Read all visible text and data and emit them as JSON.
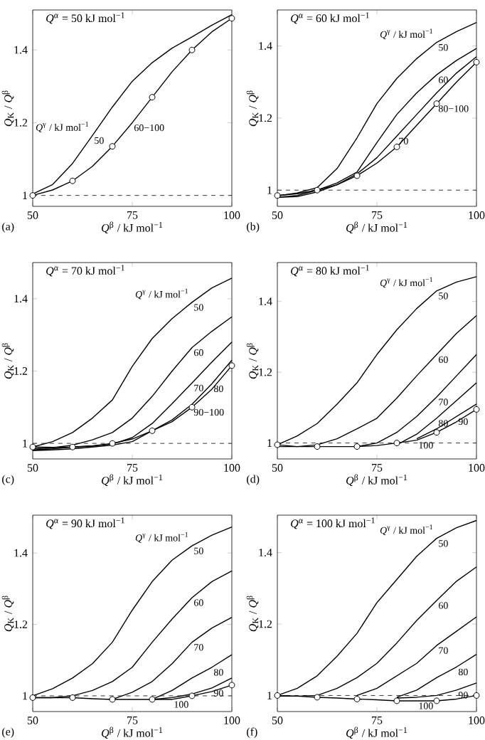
{
  "chart_data": [
    {
      "type": "line",
      "title": "*Q*$^{α}$ = 50 kJ mol$^{−1}$",
      "xlabel": "*Q*$^{β}$ / kJ mol$^{−1}$",
      "ylabel": "*Q*$_{K}$ / *Q*$^{β}$",
      "legend_title": "*Q*$^{γ}$ / kJ mol$^{−1}$",
      "xlim": [
        50,
        100
      ],
      "ylim": [
        0.97,
        1.51
      ],
      "xticks": [
        50,
        75,
        100
      ],
      "yticks": [
        1,
        1.2,
        1.4
      ],
      "x": [
        50,
        55,
        60,
        65,
        70,
        75,
        80,
        85,
        90,
        95,
        100
      ],
      "series": [
        {
          "color": "#000000",
          "values": [
            1.004,
            1.03,
            1.088,
            1.165,
            1.243,
            1.314,
            1.365,
            1.405,
            1.436,
            1.468,
            1.497
          ]
        },
        {
          "color": "#000000",
          "values": [
            1.0,
            1.015,
            1.04,
            1.08,
            1.135,
            1.2,
            1.27,
            1.34,
            1.4,
            1.45,
            1.487
          ]
        },
        {
          "type": "scatter",
          "marker": "circle",
          "color": "#000000",
          "x": [
            50,
            60,
            70,
            80,
            90,
            100
          ],
          "values": [
            1.0,
            1.04,
            1.135,
            1.27,
            1.4,
            1.487
          ]
        }
      ],
      "ref_lines": [
        {
          "axis": "y",
          "value": 1,
          "color": "#000000",
          "line_style": "dashed"
        }
      ],
      "annotations": [
        {
          "text": "50",
          "x": 65,
          "y": 1.165
        },
        {
          "text": "60−100",
          "x": 75,
          "y": 1.2
        },
        "(a)"
      ]
    },
    {
      "type": "line",
      "title": "*Q*$^{α}$ = 60 kJ mol$^{−1}$",
      "xlabel": "*Q*$^{β}$ / kJ mol$^{−1}$",
      "ylabel": "*Q*$_{K}$ / *Q*$^{β}$",
      "legend_title": "*Q*$^{γ}$ / kJ mol$^{−1}$",
      "xlim": [
        50,
        100
      ],
      "ylim": [
        0.955,
        1.5
      ],
      "xticks": [
        50,
        75,
        100
      ],
      "yticks": [
        1,
        1.2,
        1.4
      ],
      "x": [
        50,
        55,
        60,
        65,
        70,
        75,
        80,
        85,
        90,
        95,
        100
      ],
      "series": [
        {
          "color": "#000000",
          "values": [
            0.984,
            0.992,
            1.007,
            1.06,
            1.145,
            1.24,
            1.31,
            1.365,
            1.41,
            1.44,
            1.465
          ]
        },
        {
          "color": "#000000",
          "values": [
            0.98,
            0.985,
            1.0,
            1.02,
            1.05,
            1.132,
            1.21,
            1.27,
            1.32,
            1.36,
            1.393
          ]
        },
        {
          "color": "#000000",
          "values": [
            0.98,
            0.982,
            0.995,
            1.015,
            1.045,
            1.09,
            1.15,
            1.21,
            1.27,
            1.325,
            1.37
          ]
        },
        {
          "color": "#000000",
          "values": [
            0.985,
            0.99,
            1.0,
            1.015,
            1.04,
            1.075,
            1.12,
            1.18,
            1.24,
            1.3,
            1.355
          ]
        },
        {
          "type": "scatter",
          "marker": "circle",
          "color": "#000000",
          "x": [
            50,
            60,
            70,
            80,
            90,
            100
          ],
          "values": [
            0.985,
            1.0,
            1.04,
            1.12,
            1.24,
            1.355
          ]
        }
      ],
      "ref_lines": [
        {
          "axis": "y",
          "value": 1,
          "color": "#000000",
          "line_style": "dashed"
        }
      ],
      "annotations": [
        {
          "text": "50",
          "x": 90,
          "y": 1.41
        },
        {
          "text": "60",
          "x": 90,
          "y": 1.32
        },
        {
          "text": "70",
          "x": 80,
          "y": 1.15
        },
        {
          "text": "80−100",
          "x": 90,
          "y": 1.24
        },
        "(b)"
      ]
    },
    {
      "type": "line",
      "title": "*Q*$^{α}$ = 70 kJ mol$^{−1}$",
      "xlabel": "*Q*$^{β}$ / kJ mol$^{−1}$",
      "ylabel": "*Q*$_{K}$ / *Q*$^{β}$",
      "legend_title": "*Q*$^{γ}$ / kJ mol$^{−1}$",
      "xlim": [
        50,
        100
      ],
      "ylim": [
        0.957,
        1.5
      ],
      "xticks": [
        50,
        75,
        100
      ],
      "yticks": [
        1,
        1.2,
        1.4
      ],
      "x": [
        50,
        55,
        60,
        65,
        70,
        75,
        80,
        85,
        90,
        95,
        100
      ],
      "series": [
        {
          "color": "#000000",
          "values": [
            0.99,
            1.005,
            1.03,
            1.07,
            1.12,
            1.213,
            1.29,
            1.345,
            1.39,
            1.43,
            1.457
          ]
        },
        {
          "color": "#000000",
          "values": [
            0.985,
            0.988,
            0.995,
            1.01,
            1.03,
            1.07,
            1.13,
            1.2,
            1.265,
            1.31,
            1.35
          ]
        },
        {
          "color": "#000000",
          "values": [
            0.982,
            0.985,
            0.99,
            0.993,
            0.998,
            1.016,
            1.055,
            1.11,
            1.167,
            1.225,
            1.28
          ]
        },
        {
          "color": "#000000",
          "values": [
            0.98,
            0.982,
            0.985,
            0.99,
            0.995,
            1.005,
            1.035,
            1.065,
            1.108,
            1.165,
            1.23
          ]
        },
        {
          "color": "#000000",
          "values": [
            0.99,
            0.989,
            0.99,
            0.993,
            1.0,
            1.012,
            1.035,
            1.06,
            1.1,
            1.15,
            1.215
          ]
        },
        {
          "type": "scatter",
          "marker": "circle",
          "color": "#000000",
          "x": [
            50,
            60,
            70,
            80,
            90,
            100
          ],
          "values": [
            0.99,
            0.99,
            1.0,
            1.035,
            1.1,
            1.215
          ]
        }
      ],
      "ref_lines": [
        {
          "axis": "y",
          "value": 1,
          "color": "#000000",
          "line_style": "dashed"
        }
      ],
      "annotations": [
        {
          "text": "50",
          "x": 90,
          "y": 1.39
        },
        {
          "text": "60",
          "x": 90,
          "y": 1.265
        },
        {
          "text": "70",
          "x": 90,
          "y": 1.167
        },
        {
          "text": "80",
          "x": 95,
          "y": 1.165
        },
        {
          "text": "90−100",
          "x": 90,
          "y": 1.1
        },
        "(c)"
      ]
    },
    {
      "type": "line",
      "title": "*Q*$^{α}$ = 80 kJ mol$^{−1}$",
      "xlabel": "*Q*$^{β}$ / kJ mol$^{−1}$",
      "ylabel": "*Q*$_{K}$ / *Q*$^{β}$",
      "legend_title": "*Q*$^{γ}$ / kJ mol$^{−1}$",
      "xlim": [
        50,
        100
      ],
      "ylim": [
        0.955,
        1.51
      ],
      "xticks": [
        50,
        75,
        100
      ],
      "yticks": [
        1,
        1.2,
        1.4
      ],
      "x": [
        50,
        55,
        60,
        65,
        70,
        75,
        80,
        85,
        90,
        95,
        100
      ],
      "series": [
        {
          "color": "#000000",
          "values": [
            0.995,
            1.02,
            1.055,
            1.11,
            1.17,
            1.25,
            1.32,
            1.38,
            1.43,
            1.455,
            1.47
          ]
        },
        {
          "color": "#000000",
          "values": [
            0.99,
            0.99,
            0.995,
            1.012,
            1.04,
            1.07,
            1.127,
            1.19,
            1.25,
            1.31,
            1.36
          ]
        },
        {
          "color": "#000000",
          "values": [
            null,
            null,
            null,
            null,
            0.99,
            1.0,
            1.03,
            1.075,
            1.13,
            1.19,
            1.25
          ]
        },
        {
          "color": "#000000",
          "values": [
            null,
            null,
            null,
            null,
            null,
            null,
            0.995,
            1.025,
            1.07,
            1.12,
            1.17
          ]
        },
        {
          "color": "#000000",
          "values": [
            null,
            null,
            null,
            null,
            null,
            null,
            null,
            1.012,
            1.04,
            1.075,
            1.11
          ]
        },
        {
          "color": "#000000",
          "values": [
            0.995,
            0.99,
            0.99,
            0.99,
            0.99,
            0.993,
            1.0,
            1.008,
            1.03,
            1.06,
            1.095
          ]
        },
        {
          "type": "scatter",
          "marker": "circle",
          "color": "#000000",
          "x": [
            50,
            60,
            70,
            80,
            90,
            100
          ],
          "values": [
            0.995,
            0.99,
            0.99,
            1.0,
            1.03,
            1.095
          ]
        }
      ],
      "ref_lines": [
        {
          "axis": "y",
          "value": 1,
          "color": "#000000",
          "line_style": "dashed"
        }
      ],
      "annotations": [
        {
          "text": "50",
          "x": 90,
          "y": 1.43
        },
        {
          "text": "60",
          "x": 90,
          "y": 1.25
        },
        {
          "text": "70",
          "x": 90,
          "y": 1.13
        },
        {
          "text": "80",
          "x": 90,
          "y": 1.07
        },
        {
          "text": "100",
          "x": 85,
          "y": 1.008
        },
        {
          "text": "90",
          "x": 95,
          "y": 1.075
        },
        "(d)"
      ]
    },
    {
      "type": "line",
      "title": "*Q*$^{α}$ = 90 kJ mol$^{−1}$",
      "xlabel": "*Q*$^{β}$ / kJ mol$^{−1}$",
      "ylabel": "*Q*$_{K}$ / *Q*$^{β}$",
      "legend_title": "*Q*$^{γ}$ / kJ mol$^{−1}$",
      "xlim": [
        50,
        100
      ],
      "ylim": [
        0.956,
        1.506
      ],
      "xticks": [
        50,
        75,
        100
      ],
      "yticks": [
        1,
        1.2,
        1.4
      ],
      "x": [
        50,
        55,
        60,
        65,
        70,
        75,
        80,
        85,
        90,
        95,
        100
      ],
      "series": [
        {
          "color": "#000000",
          "values": [
            1.0,
            1.02,
            1.05,
            1.09,
            1.15,
            1.24,
            1.32,
            1.38,
            1.42,
            1.45,
            1.473
          ]
        },
        {
          "color": "#000000",
          "values": [
            0.995,
            0.995,
            1.0,
            1.015,
            1.04,
            1.08,
            1.15,
            1.215,
            1.275,
            1.32,
            1.35
          ]
        },
        {
          "color": "#000000",
          "values": [
            null,
            null,
            null,
            null,
            0.99,
            1.01,
            1.04,
            1.09,
            1.15,
            1.19,
            1.22
          ]
        },
        {
          "color": "#000000",
          "values": [
            null,
            null,
            null,
            null,
            null,
            null,
            0.99,
            1.015,
            1.05,
            1.08,
            1.115
          ]
        },
        {
          "color": "#000000",
          "values": [
            null,
            null,
            null,
            null,
            null,
            null,
            0.99,
            0.995,
            1.005,
            1.022,
            1.05
          ]
        },
        {
          "color": "#000000",
          "values": [
            0.995,
            0.995,
            0.995,
            0.992,
            0.99,
            0.99,
            0.99,
            0.99,
            1.0,
            1.012,
            1.03
          ]
        },
        {
          "type": "scatter",
          "marker": "circle",
          "color": "#000000",
          "x": [
            50,
            60,
            70,
            80,
            90,
            100
          ],
          "values": [
            0.995,
            0.995,
            0.99,
            0.99,
            1.0,
            1.03
          ]
        }
      ],
      "ref_lines": [
        {
          "axis": "y",
          "value": 1,
          "color": "#000000",
          "line_style": "dashed"
        }
      ],
      "annotations": [
        {
          "text": "50",
          "x": 90,
          "y": 1.42
        },
        {
          "text": "60",
          "x": 90,
          "y": 1.275
        },
        {
          "text": "70",
          "x": 90,
          "y": 1.15
        },
        {
          "text": "80",
          "x": 95,
          "y": 1.08
        },
        {
          "text": "90",
          "x": 95,
          "y": 1.022
        },
        {
          "text": "100",
          "x": 85,
          "y": 0.99
        },
        "(e)"
      ]
    },
    {
      "type": "line",
      "title": "*Q*$^{α}$ = 100 kJ mol$^{−1}$",
      "xlabel": "*Q*$^{β}$ / kJ mol$^{−1}$",
      "ylabel": "*Q*$_{K}$ / *Q*$^{β}$",
      "legend_title": "*Q*$^{γ}$ / kJ mol$^{−1}$",
      "xlim": [
        50,
        100
      ],
      "ylim": [
        0.955,
        1.505
      ],
      "xticks": [
        50,
        75,
        100
      ],
      "yticks": [
        1,
        1.2,
        1.4
      ],
      "x": [
        50,
        55,
        60,
        65,
        70,
        75,
        80,
        85,
        90,
        95,
        100
      ],
      "series": [
        {
          "color": "#000000",
          "values": [
            1.0,
            1.02,
            1.055,
            1.11,
            1.174,
            1.26,
            1.325,
            1.39,
            1.44,
            1.47,
            1.49
          ]
        },
        {
          "color": "#000000",
          "values": [
            0.998,
            0.998,
            1.0,
            1.02,
            1.05,
            1.09,
            1.147,
            1.21,
            1.266,
            1.32,
            1.36
          ]
        },
        {
          "color": "#000000",
          "values": [
            null,
            null,
            null,
            null,
            1.0,
            1.02,
            1.055,
            1.09,
            1.14,
            1.18,
            1.22
          ]
        },
        {
          "color": "#000000",
          "values": [
            null,
            null,
            null,
            null,
            null,
            null,
            0.995,
            1.015,
            1.05,
            1.08,
            1.115
          ]
        },
        {
          "color": "#000000",
          "values": [
            null,
            null,
            null,
            null,
            null,
            null,
            0.993,
            0.995,
            1.0,
            1.015,
            1.035
          ]
        },
        {
          "color": "#000000",
          "values": [
            1.0,
            0.998,
            0.995,
            0.993,
            0.99,
            0.988,
            0.985,
            0.985,
            0.985,
            0.99,
            1.0
          ]
        },
        {
          "type": "scatter",
          "marker": "circle",
          "color": "#000000",
          "x": [
            50,
            60,
            70,
            80,
            90,
            100
          ],
          "values": [
            1.0,
            0.995,
            0.99,
            0.985,
            0.985,
            1.0
          ]
        }
      ],
      "ref_lines": [
        {
          "axis": "y",
          "value": 1,
          "color": "#000000",
          "line_style": "dashed"
        }
      ],
      "annotations": [
        {
          "text": "50",
          "x": 90,
          "y": 1.44
        },
        {
          "text": "60",
          "x": 90,
          "y": 1.266
        },
        {
          "text": "70",
          "x": 90,
          "y": 1.14
        },
        {
          "text": "80",
          "x": 95,
          "y": 1.08
        },
        {
          "text": "90",
          "x": 95,
          "y": 1.015
        },
        {
          "text": "100",
          "x": 85,
          "y": 0.985
        },
        "(f)"
      ]
    }
  ]
}
